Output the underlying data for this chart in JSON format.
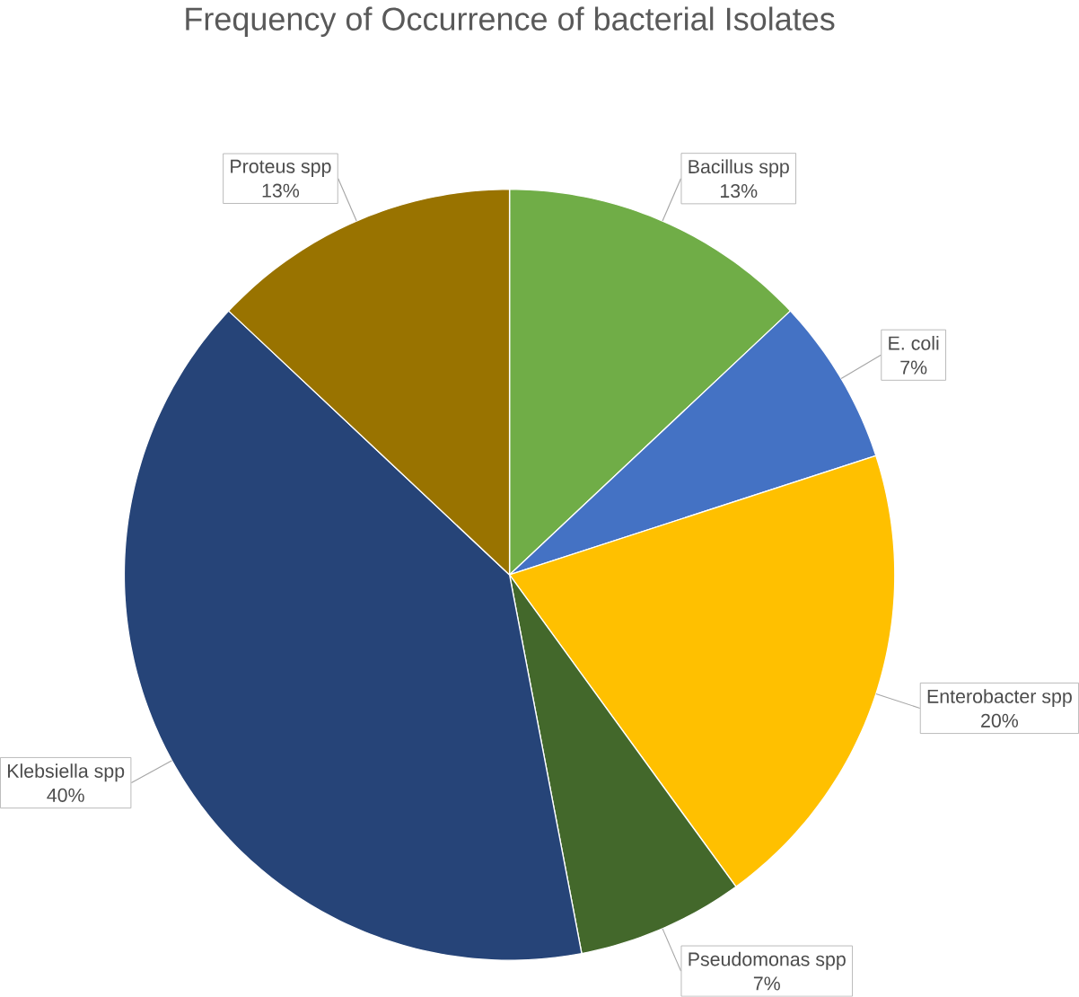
{
  "chart_data": {
    "type": "pie",
    "title": "Frequency of Occurrence of bacterial Isolates",
    "categories": [
      "Bacillus spp",
      "E. coli",
      "Enterobacter spp",
      "Pseudomonas spp",
      "Klebsiella spp",
      "Proteus spp"
    ],
    "values": [
      13,
      7,
      20,
      7,
      40,
      13
    ],
    "value_labels": [
      "13%",
      "7%",
      "20%",
      "7%",
      "40%",
      "13%"
    ],
    "colors": [
      "#70ad47",
      "#4472c4",
      "#ffc000",
      "#43682b",
      "#264478",
      "#997300"
    ]
  }
}
